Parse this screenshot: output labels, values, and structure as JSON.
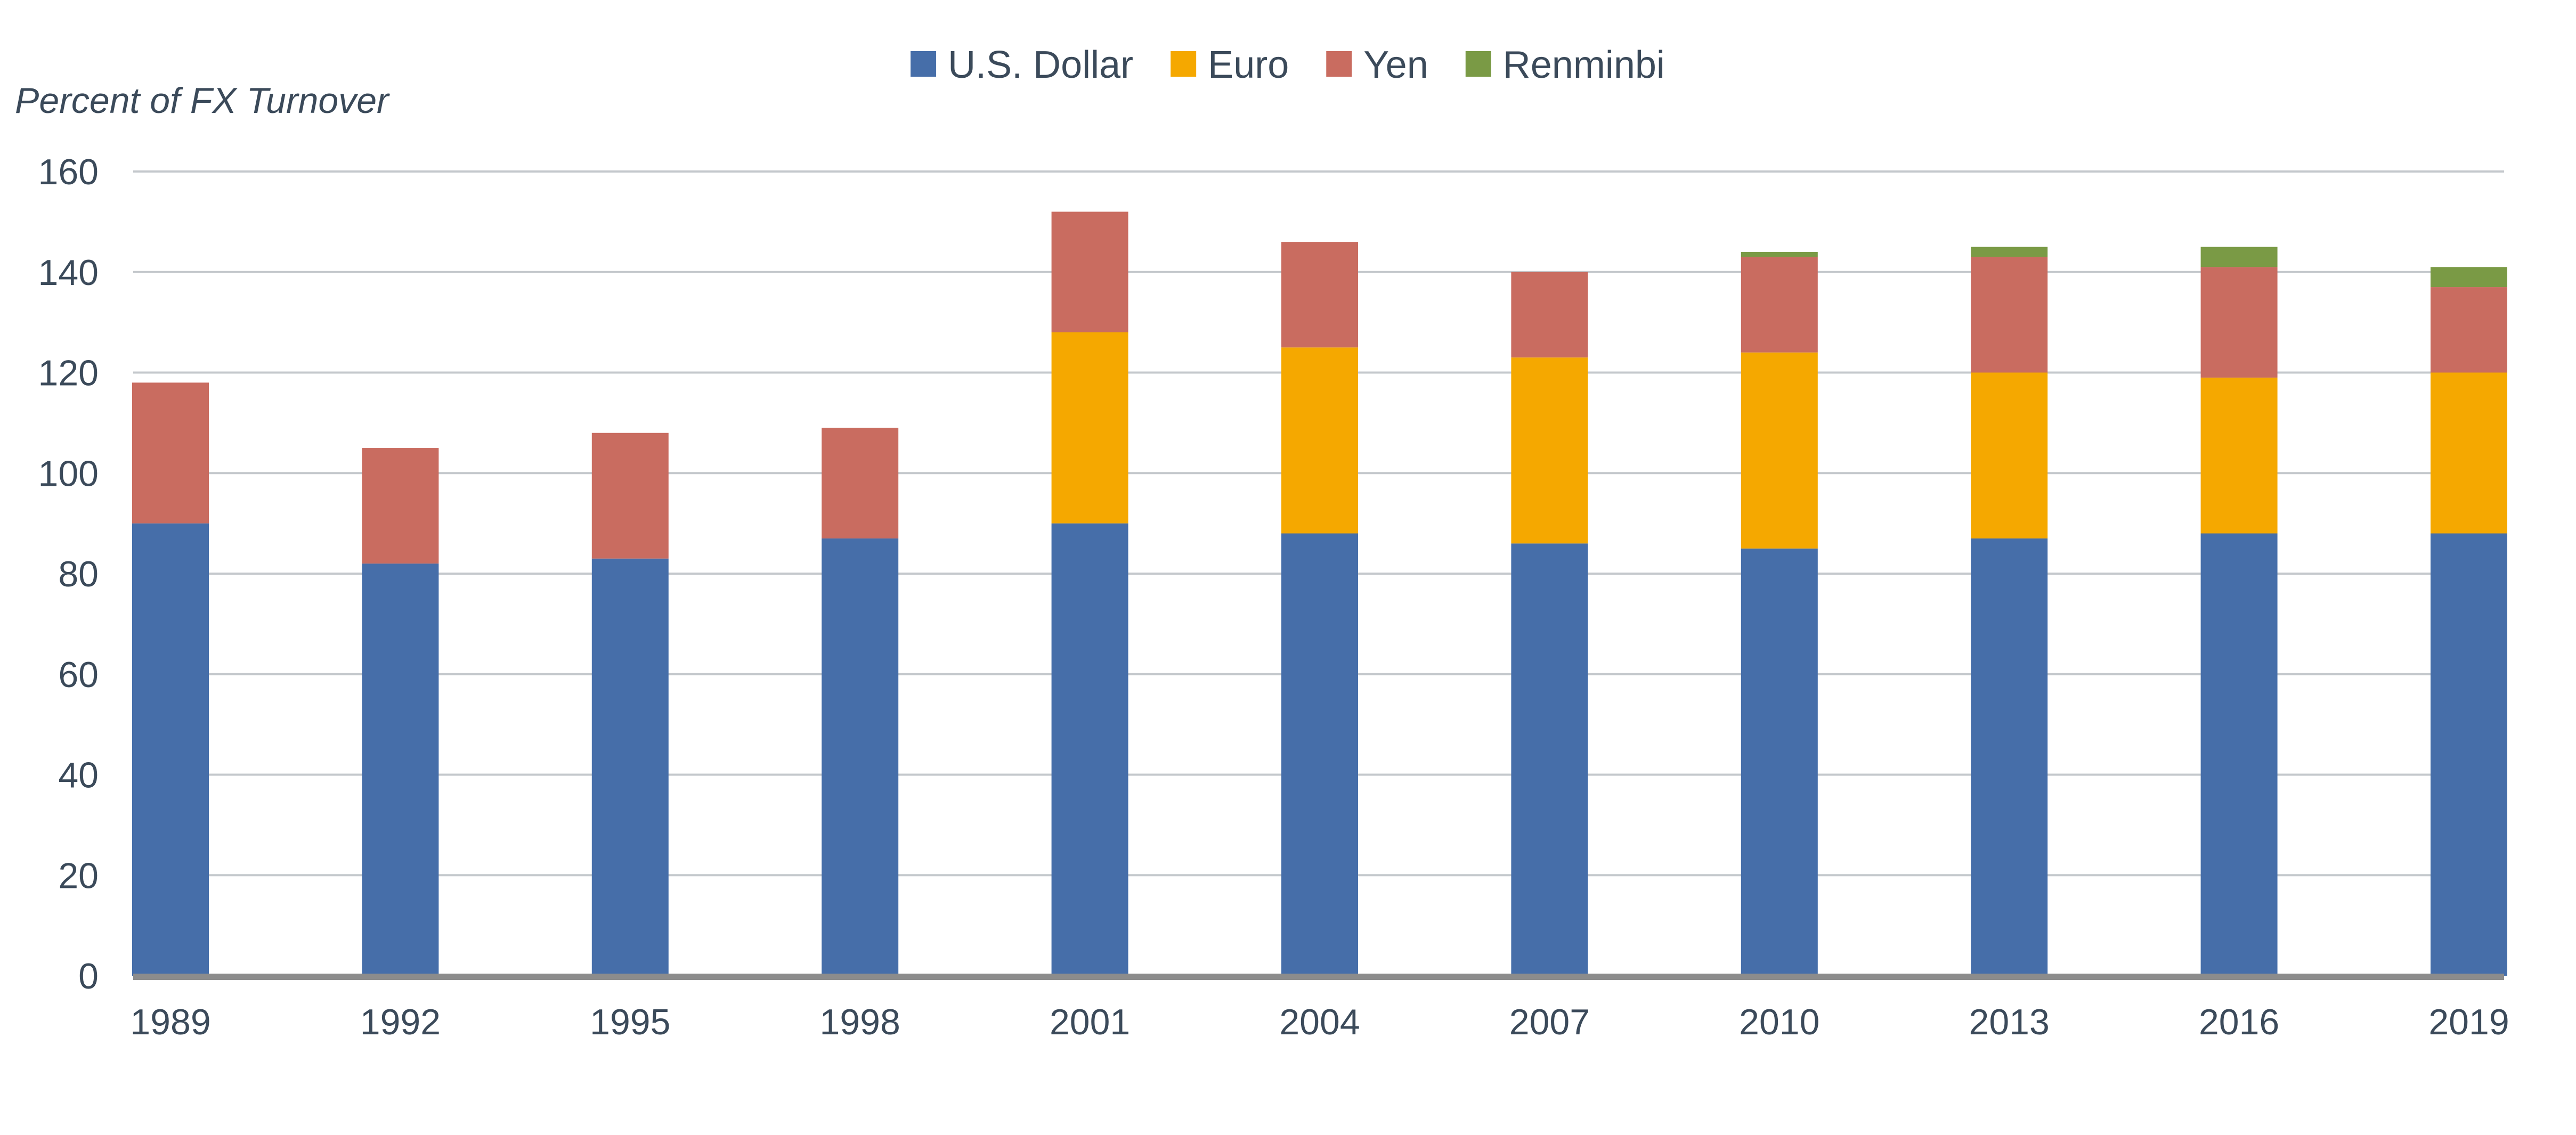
{
  "chart_data": {
    "type": "bar",
    "stacked": true,
    "title": "",
    "xlabel": "",
    "ylabel": "Percent of FX Turnover",
    "ylim": [
      0,
      160
    ],
    "yticks": [
      0,
      20,
      40,
      60,
      80,
      100,
      120,
      140,
      160
    ],
    "grid": true,
    "legend_position": "top-center",
    "categories": [
      "1989",
      "1992",
      "1995",
      "1998",
      "2001",
      "2004",
      "2007",
      "2010",
      "2013",
      "2016",
      "2019"
    ],
    "series": [
      {
        "name": "U.S. Dollar",
        "color": "#466ea9",
        "values": [
          90,
          82,
          83,
          87,
          90,
          88,
          86,
          85,
          87,
          88,
          88
        ]
      },
      {
        "name": "Euro",
        "color": "#f5a800",
        "values": [
          0,
          0,
          0,
          0,
          38,
          37,
          37,
          39,
          33,
          31,
          32
        ]
      },
      {
        "name": "Yen",
        "color": "#c96c60",
        "values": [
          28,
          23,
          25,
          22,
          24,
          21,
          17,
          19,
          23,
          22,
          17
        ]
      },
      {
        "name": "Renminbi",
        "color": "#7a9a45",
        "values": [
          0,
          0,
          0,
          0,
          0,
          0,
          0,
          1,
          2,
          4,
          4
        ]
      }
    ]
  }
}
